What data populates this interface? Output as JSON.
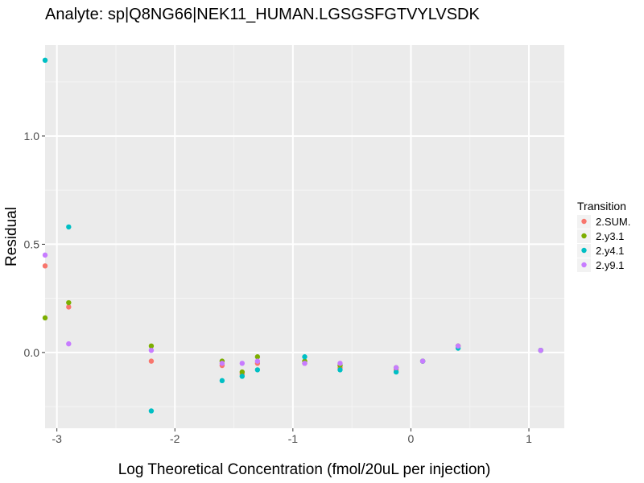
{
  "chart_data": {
    "type": "scatter",
    "title": "Analyte: sp|Q8NG66|NEK11_HUMAN.LGSGSFGTVYLVSDK",
    "xlabel": "Log Theoretical Concentration (fmol/20uL per injection)",
    "ylabel": "Residual",
    "xlim": [
      -3.1,
      1.3
    ],
    "ylim": [
      -0.35,
      1.42
    ],
    "x_ticks": [
      {
        "value": -3,
        "label": "-3"
      },
      {
        "value": -2,
        "label": "-2"
      },
      {
        "value": -1,
        "label": "-1"
      },
      {
        "value": 0,
        "label": "0"
      },
      {
        "value": 1,
        "label": "1"
      }
    ],
    "y_ticks": [
      {
        "value": 0.0,
        "label": "0.0"
      },
      {
        "value": 0.5,
        "label": "0.5"
      },
      {
        "value": 1.0,
        "label": "1.0"
      }
    ],
    "grid": true,
    "legend": {
      "title": "Transition",
      "position": "right"
    },
    "series": [
      {
        "name": "2.SUM.",
        "color": "#F8766D",
        "points": [
          {
            "x": -3.1,
            "y": 0.4
          },
          {
            "x": -2.9,
            "y": 0.21
          },
          {
            "x": -2.2,
            "y": -0.04
          },
          {
            "x": -1.6,
            "y": -0.06
          },
          {
            "x": -1.43,
            "y": -0.1
          },
          {
            "x": -1.3,
            "y": -0.05
          },
          {
            "x": -0.9,
            "y": -0.05
          },
          {
            "x": -0.6,
            "y": -0.07
          },
          {
            "x": -0.125,
            "y": -0.08
          },
          {
            "x": 0.1,
            "y": -0.04
          },
          {
            "x": 0.4,
            "y": 0.03
          },
          {
            "x": 1.1,
            "y": 0.01
          }
        ]
      },
      {
        "name": "2.y3.1",
        "color": "#7CAE00",
        "points": [
          {
            "x": -3.1,
            "y": 0.16
          },
          {
            "x": -2.9,
            "y": 0.23
          },
          {
            "x": -2.2,
            "y": 0.03
          },
          {
            "x": -1.6,
            "y": -0.04
          },
          {
            "x": -1.43,
            "y": -0.09
          },
          {
            "x": -1.3,
            "y": -0.02
          },
          {
            "x": -0.9,
            "y": -0.04
          },
          {
            "x": -0.6,
            "y": -0.06
          },
          {
            "x": -0.125,
            "y": -0.07
          },
          {
            "x": 0.1,
            "y": -0.04
          },
          {
            "x": 0.4,
            "y": 0.03
          },
          {
            "x": 1.1,
            "y": 0.01
          }
        ]
      },
      {
        "name": "2.y4.1",
        "color": "#00BFC4",
        "points": [
          {
            "x": -3.1,
            "y": 1.35
          },
          {
            "x": -2.9,
            "y": 0.58
          },
          {
            "x": -2.2,
            "y": -0.27
          },
          {
            "x": -1.6,
            "y": -0.13
          },
          {
            "x": -1.43,
            "y": -0.11
          },
          {
            "x": -1.3,
            "y": -0.08
          },
          {
            "x": -0.9,
            "y": -0.02
          },
          {
            "x": -0.6,
            "y": -0.08
          },
          {
            "x": -0.125,
            "y": -0.09
          },
          {
            "x": 0.1,
            "y": -0.04
          },
          {
            "x": 0.4,
            "y": 0.02
          },
          {
            "x": 1.1,
            "y": 0.01
          }
        ]
      },
      {
        "name": "2.y9.1",
        "color": "#C77CFF",
        "points": [
          {
            "x": -3.1,
            "y": 0.45
          },
          {
            "x": -2.9,
            "y": 0.04
          },
          {
            "x": -2.2,
            "y": 0.01
          },
          {
            "x": -1.6,
            "y": -0.05
          },
          {
            "x": -1.43,
            "y": -0.05
          },
          {
            "x": -1.3,
            "y": -0.04
          },
          {
            "x": -0.9,
            "y": -0.05
          },
          {
            "x": -0.6,
            "y": -0.05
          },
          {
            "x": -0.125,
            "y": -0.07
          },
          {
            "x": 0.1,
            "y": -0.04
          },
          {
            "x": 0.4,
            "y": 0.03
          },
          {
            "x": 1.1,
            "y": 0.01
          }
        ]
      }
    ]
  }
}
